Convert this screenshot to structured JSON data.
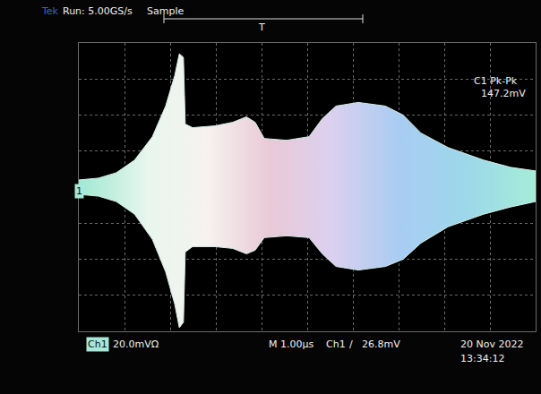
{
  "chart_data": {
    "type": "area",
    "x": [
      -5.0,
      -4.57,
      -4.18,
      -3.78,
      -3.39,
      -3.1,
      -2.9,
      -2.8,
      -2.71,
      -2.67,
      -2.51,
      -2.02,
      -1.63,
      -1.33,
      -1.14,
      -0.94,
      -0.45,
      0.04,
      0.33,
      0.63,
      1.12,
      1.71,
      2.1,
      2.49,
      3.08,
      3.86,
      4.45,
      5.0
    ],
    "series": [
      {
        "color": "#d6efe6",
        "values": [
          4,
          5,
          8,
          15,
          28,
          45,
          62,
          74,
          72,
          35,
          33,
          34,
          36,
          39,
          36,
          27,
          26,
          28,
          38,
          45,
          47,
          45,
          40,
          30,
          22,
          15,
          11,
          9
        ]
      },
      {
        "color": "#d6efe6",
        "values": [
          -4,
          -5,
          -8,
          -15,
          -29,
          -47,
          -65,
          -78,
          -75,
          -36,
          -33,
          -33,
          -34,
          -37,
          -35,
          -28,
          -27,
          -28,
          -37,
          -44,
          -46,
          -44,
          -40,
          -31,
          -22,
          -15,
          -11,
          -8
        ]
      }
    ],
    "xlim": [
      -5,
      5
    ],
    "ylim": [
      -80,
      80
    ],
    "xticks": [
      -5,
      -4,
      -3,
      -2,
      -1,
      0,
      1,
      2,
      3,
      4,
      5
    ],
    "yticks": [
      -80,
      -60,
      -40,
      -20,
      0,
      20,
      40,
      60,
      80
    ],
    "grid": true,
    "tick_labels": false,
    "annotations": [
      "Tek",
      "Run: 5.00GS/s",
      "Sample",
      "T",
      "C1 Pk-Pk",
      "147.2mV",
      "1",
      "Ch1",
      "20.0mVΩ",
      "M 1.00µs",
      "Ch1",
      "/",
      "26.8mV",
      "20 Nov 2022",
      "13:34:12"
    ]
  }
}
